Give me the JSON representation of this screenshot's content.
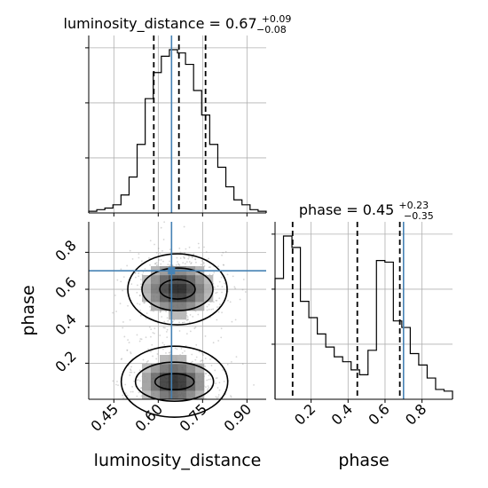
{
  "chart_data": {
    "type": "corner",
    "parameters": [
      {
        "name": "luminosity_distance",
        "title": {
          "label": "luminosity_distance",
          "median": "0.67",
          "plus": "+0.09",
          "minus": "−0.08"
        },
        "range": [
          0.365,
          0.965
        ],
        "ticks": [
          0.45,
          0.6,
          0.75,
          0.9
        ],
        "tick_labels": [
          "0.45",
          "0.60",
          "0.75",
          "0.90"
        ],
        "quantiles": [
          0.585,
          0.67,
          0.76
        ],
        "truth": 0.645,
        "hist_counts": [
          1,
          2,
          3,
          5,
          11,
          22,
          42,
          70,
          86,
          96,
          100,
          98,
          91,
          75,
          60,
          42,
          28,
          16,
          8,
          5,
          2,
          1
        ]
      },
      {
        "name": "phase",
        "title": {
          "label": "phase",
          "median": "0.45",
          "plus": "+0.23",
          "minus": "−0.35"
        },
        "range": [
          0.005,
          0.965
        ],
        "ticks": [
          0.2,
          0.4,
          0.6,
          0.8
        ],
        "tick_labels": [
          "0.2",
          "0.4",
          "0.6",
          "0.8"
        ],
        "quantiles": [
          0.1,
          0.45,
          0.68
        ],
        "truth": 0.7,
        "hist_counts": [
          74,
          100,
          93,
          60,
          50,
          40,
          32,
          26,
          23,
          18,
          15,
          30,
          85,
          84,
          48,
          44,
          28,
          21,
          13,
          6,
          5
        ]
      }
    ],
    "truth_color": "#4682b4",
    "modes_2d": [
      {
        "x": 0.665,
        "y": 0.6
      },
      {
        "x": 0.655,
        "y": 0.1
      }
    ],
    "grid": true
  }
}
